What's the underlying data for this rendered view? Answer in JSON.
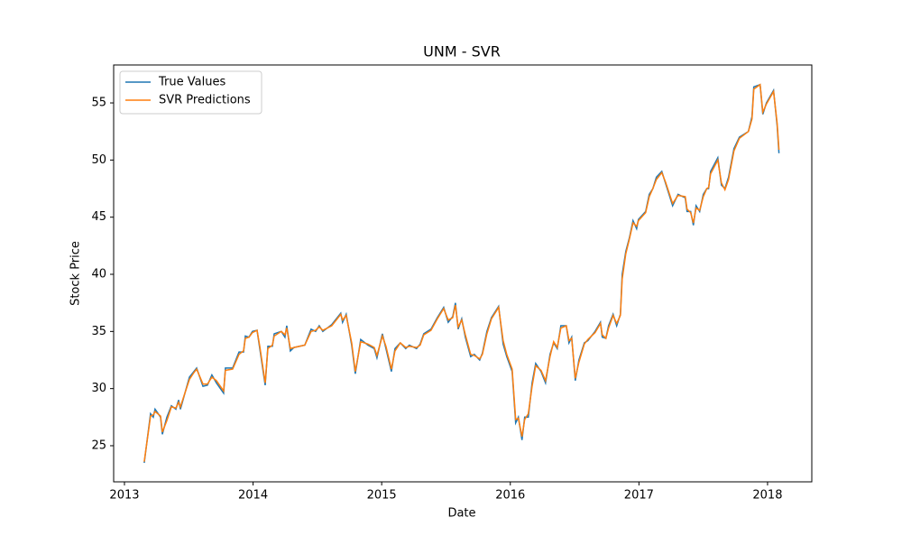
{
  "chart_data": {
    "type": "line",
    "title": "UNM - SVR",
    "x_label": "Date",
    "y_label": "Stock Price",
    "x": [
      2013.154,
      2013.203,
      2013.224,
      2013.238,
      2013.281,
      2013.295,
      2013.33,
      2013.365,
      2013.4,
      2013.421,
      2013.435,
      2013.505,
      2013.54,
      2013.561,
      2013.61,
      2013.645,
      2013.68,
      2013.715,
      2013.771,
      2013.785,
      2013.841,
      2013.891,
      2013.926,
      2013.94,
      2013.968,
      2013.995,
      2014.031,
      2014.052,
      2014.094,
      2014.115,
      2014.15,
      2014.164,
      2014.22,
      2014.248,
      2014.262,
      2014.29,
      2014.318,
      2014.402,
      2014.451,
      2014.486,
      2014.514,
      2014.542,
      2014.612,
      2014.682,
      2014.696,
      2014.724,
      2014.767,
      2014.795,
      2014.837,
      2014.893,
      2014.942,
      2014.963,
      2015.005,
      2015.033,
      2015.075,
      2015.103,
      2015.145,
      2015.187,
      2015.215,
      2015.271,
      2015.299,
      2015.327,
      2015.383,
      2015.432,
      2015.482,
      2015.517,
      2015.552,
      2015.573,
      2015.594,
      2015.622,
      2015.65,
      2015.692,
      2015.72,
      2015.762,
      2015.783,
      2015.818,
      2015.853,
      2015.909,
      2015.944,
      2015.972,
      2016.014,
      2016.042,
      2016.063,
      2016.091,
      2016.112,
      2016.14,
      2016.169,
      2016.197,
      2016.239,
      2016.274,
      2016.309,
      2016.337,
      2016.365,
      2016.393,
      2016.435,
      2016.456,
      2016.477,
      2016.505,
      2016.533,
      2016.575,
      2016.603,
      2016.659,
      2016.701,
      2016.715,
      2016.743,
      2016.764,
      2016.799,
      2016.827,
      2016.856,
      2016.87,
      2016.898,
      2016.926,
      2016.954,
      2016.982,
      2016.996,
      2017.052,
      2017.08,
      2017.108,
      2017.136,
      2017.178,
      2017.206,
      2017.262,
      2017.304,
      2017.36,
      2017.374,
      2017.402,
      2017.423,
      2017.444,
      2017.472,
      2017.5,
      2017.528,
      2017.542,
      2017.557,
      2017.613,
      2017.641,
      2017.669,
      2017.697,
      2017.739,
      2017.781,
      2017.851,
      2017.879,
      2017.893,
      2017.942,
      2017.963,
      2017.991,
      2018.047,
      2018.075,
      2018.089
    ],
    "series": [
      {
        "name": "True Values",
        "color": "#1f77b4",
        "values": [
          23.5,
          27.8,
          27.5,
          28.2,
          27.5,
          26.0,
          27.5,
          28.5,
          28.2,
          29.0,
          28.2,
          31.0,
          31.5,
          31.8,
          30.2,
          30.3,
          31.2,
          30.5,
          29.6,
          31.8,
          31.8,
          33.2,
          33.2,
          34.6,
          34.5,
          35.0,
          35.1,
          33.5,
          30.3,
          33.7,
          33.7,
          34.8,
          35.0,
          34.5,
          35.5,
          33.3,
          33.6,
          33.8,
          35.2,
          35.0,
          35.5,
          35.0,
          35.6,
          36.6,
          35.8,
          36.5,
          33.8,
          31.3,
          34.3,
          33.8,
          33.5,
          32.7,
          34.8,
          33.5,
          31.5,
          33.5,
          34.0,
          33.5,
          33.8,
          33.5,
          33.9,
          34.8,
          35.2,
          36.2,
          37.1,
          35.8,
          36.3,
          37.5,
          35.2,
          36.1,
          34.5,
          32.8,
          33.0,
          32.5,
          33.1,
          35.0,
          36.2,
          37.2,
          33.9,
          32.8,
          31.5,
          27.0,
          27.5,
          25.5,
          27.5,
          27.5,
          30.5,
          32.2,
          31.5,
          30.5,
          33.0,
          34.0,
          33.5,
          35.5,
          35.5,
          34.0,
          34.5,
          30.7,
          32.5,
          34.0,
          34.2,
          35.0,
          35.8,
          34.5,
          34.4,
          35.5,
          36.5,
          35.5,
          36.5,
          40.0,
          42.0,
          43.2,
          44.7,
          44.0,
          44.8,
          45.5,
          47.0,
          47.5,
          48.5,
          49.0,
          48.0,
          46.0,
          47.0,
          46.7,
          45.5,
          45.5,
          44.3,
          46.0,
          45.5,
          47.0,
          47.5,
          47.5,
          49.0,
          50.2,
          47.8,
          47.5,
          48.5,
          51.0,
          52.0,
          52.5,
          53.8,
          56.4,
          56.6,
          54.0,
          55.0,
          56.1,
          53.0,
          50.6
        ]
      },
      {
        "name": "SVR Predictions",
        "color": "#ff7f0e",
        "values": [
          23.6,
          27.6,
          27.7,
          28.0,
          27.6,
          26.2,
          27.2,
          28.4,
          28.3,
          28.8,
          28.4,
          30.8,
          31.4,
          31.7,
          30.4,
          30.4,
          31.0,
          30.7,
          29.8,
          31.6,
          31.7,
          33.0,
          33.3,
          34.4,
          34.5,
          34.9,
          35.1,
          33.7,
          30.5,
          33.5,
          33.8,
          34.6,
          35.0,
          34.7,
          35.3,
          33.5,
          33.6,
          33.8,
          35.0,
          35.1,
          35.4,
          35.1,
          35.5,
          36.5,
          36.0,
          36.4,
          34.0,
          31.5,
          34.1,
          33.9,
          33.6,
          32.9,
          34.6,
          33.7,
          31.7,
          33.3,
          34.0,
          33.6,
          33.7,
          33.6,
          33.8,
          34.7,
          35.1,
          36.1,
          37.0,
          36.0,
          36.2,
          37.3,
          35.4,
          36.0,
          34.7,
          33.0,
          32.9,
          32.6,
          33.0,
          34.8,
          36.1,
          37.1,
          34.2,
          33.0,
          31.7,
          27.3,
          27.4,
          25.8,
          27.3,
          27.8,
          30.2,
          32.0,
          31.6,
          30.7,
          32.8,
          34.1,
          33.6,
          35.3,
          35.5,
          34.2,
          34.4,
          30.9,
          32.3,
          33.9,
          34.3,
          34.9,
          35.7,
          34.7,
          34.4,
          35.3,
          36.4,
          35.7,
          36.4,
          39.6,
          41.8,
          43.1,
          44.5,
          44.2,
          44.7,
          45.4,
          46.8,
          47.5,
          48.3,
          48.9,
          48.1,
          46.2,
          46.9,
          46.8,
          45.7,
          45.4,
          44.5,
          45.8,
          45.6,
          46.8,
          47.5,
          47.6,
          48.8,
          50.0,
          48.0,
          47.4,
          48.3,
          50.8,
          51.9,
          52.5,
          53.6,
          56.2,
          56.6,
          54.2,
          54.9,
          56.0,
          53.2,
          50.9
        ]
      }
    ],
    "xlim": [
      2012.916,
      2018.344
    ],
    "xticks": [
      2013,
      2014,
      2015,
      2016,
      2017,
      2018
    ],
    "ylim": [
      21.84,
      58.32
    ],
    "yticks": [
      25,
      30,
      35,
      40,
      45,
      50,
      55
    ],
    "legend": "upper left"
  }
}
